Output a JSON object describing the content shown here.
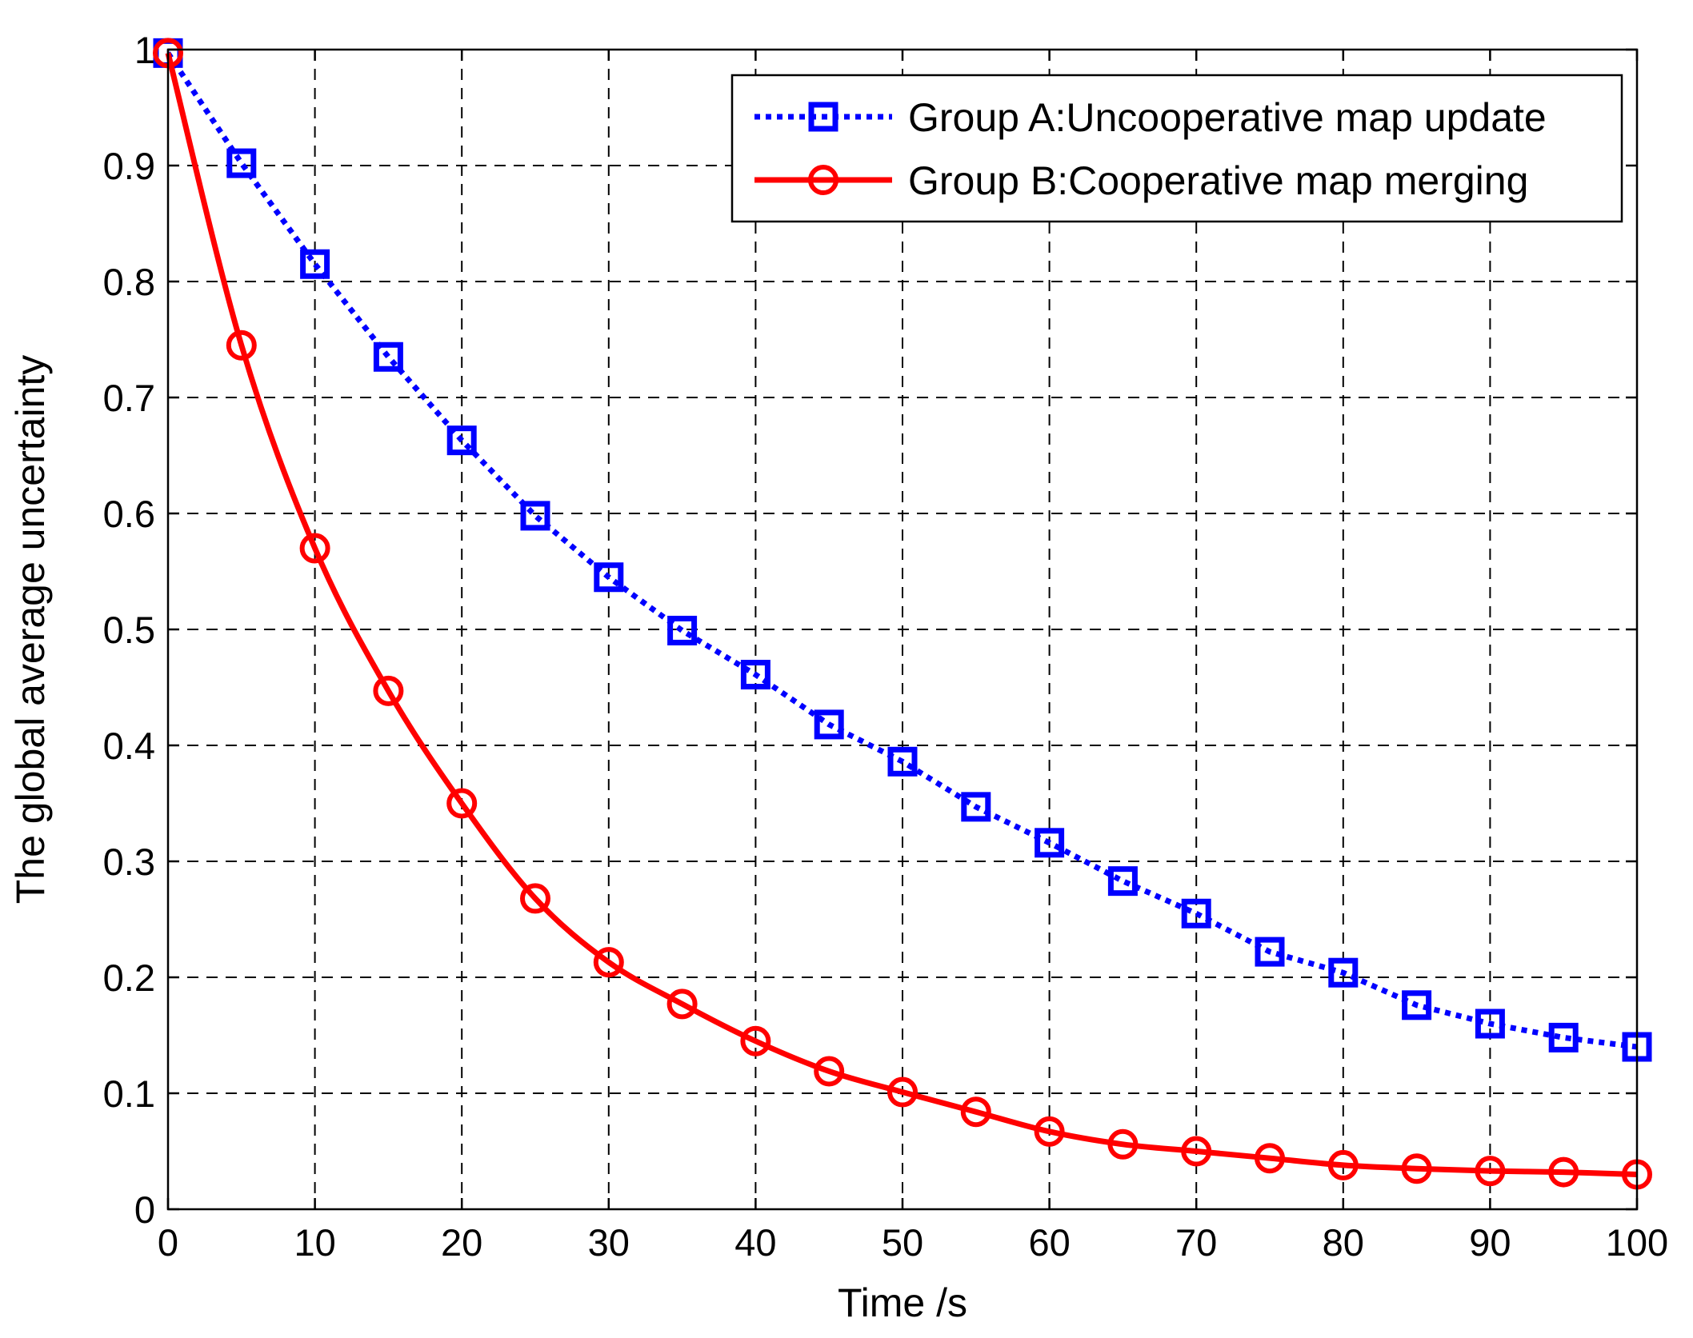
{
  "chart_data": {
    "type": "line",
    "title": "",
    "xlabel": "Time /s",
    "ylabel": "The global average uncertainty",
    "xlim": [
      0,
      100
    ],
    "ylim": [
      0,
      1
    ],
    "xticks": [
      0,
      10,
      20,
      30,
      40,
      50,
      60,
      70,
      80,
      90,
      100
    ],
    "yticks": [
      0,
      0.1,
      0.2,
      0.3,
      0.4,
      0.5,
      0.6,
      0.7,
      0.8,
      0.9,
      1
    ],
    "xtick_labels": [
      "0",
      "10",
      "20",
      "30",
      "40",
      "50",
      "60",
      "70",
      "80",
      "90",
      "100"
    ],
    "ytick_labels": [
      "0",
      "0.1",
      "0.2",
      "0.3",
      "0.4",
      "0.5",
      "0.6",
      "0.7",
      "0.8",
      "0.9",
      "1"
    ],
    "grid": true,
    "legend_position": "top-right",
    "x": [
      0,
      5,
      10,
      15,
      20,
      25,
      30,
      35,
      40,
      45,
      50,
      55,
      60,
      65,
      70,
      75,
      80,
      85,
      90,
      95,
      100
    ],
    "series": [
      {
        "name": "Group A:Uncooperative map update",
        "color": "#0000ff",
        "line_style": "dotted",
        "marker": "square",
        "values": [
          0.997,
          0.902,
          0.815,
          0.735,
          0.663,
          0.598,
          0.545,
          0.499,
          0.461,
          0.418,
          0.386,
          0.347,
          0.316,
          0.283,
          0.255,
          0.222,
          0.204,
          0.176,
          0.16,
          0.148,
          0.14
        ]
      },
      {
        "name": "Group B:Cooperative map merging",
        "color": "#ff0000",
        "line_style": "solid",
        "marker": "circle",
        "values": [
          0.997,
          0.745,
          0.57,
          0.447,
          0.35,
          0.268,
          0.213,
          0.177,
          0.145,
          0.119,
          0.101,
          0.084,
          0.067,
          0.056,
          0.05,
          0.044,
          0.038,
          0.035,
          0.033,
          0.032,
          0.03
        ]
      }
    ]
  }
}
